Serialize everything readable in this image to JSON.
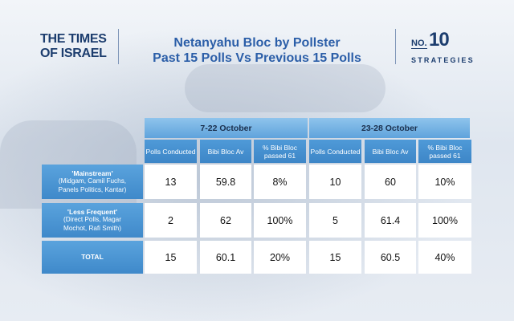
{
  "header": {
    "logo_line1": "THE TIMES",
    "logo_line2": "OF ISRAEL",
    "title_line1": "Netanyahu Bloc by Pollster",
    "title_line2": "Past 15 Polls Vs Previous 15 Polls",
    "brand_no": "NO.",
    "brand_number": "10",
    "brand_sub": "STRATEGIES"
  },
  "colors": {
    "navy": "#1c3d6e",
    "title_blue": "#2b5ea8",
    "header_blue": "#3d86c7",
    "group_blue": "#8fc4ec"
  },
  "chart_data": {
    "type": "table",
    "groups": [
      {
        "label": "7-22 October",
        "columns": [
          "Polls Conducted",
          "Bibi Bloc Av",
          "% Bibi Bloc passed 61"
        ]
      },
      {
        "label": "23-28 October",
        "columns": [
          "Polls Conducted",
          "Bibi Bloc Av",
          "% Bibi Bloc passed 61"
        ]
      }
    ],
    "rows": [
      {
        "title": "'Mainstream'",
        "detail": "(Midgam, Camil Fuchs, Panels Politics, Kantar)",
        "detail_lines": [
          "(Midgam, Camil Fuchs,",
          "Panels Politics, Kantar)"
        ],
        "values": [
          "13",
          "59.8",
          "8%",
          "10",
          "60",
          "10%"
        ]
      },
      {
        "title": "'Less Frequent'",
        "detail": "(Direct Polls, Magar Mochot, Rafi Smith)",
        "detail_lines": [
          "(Direct Polls, Magar",
          "Mochot, Rafi Smith)"
        ],
        "values": [
          "2",
          "62",
          "100%",
          "5",
          "61.4",
          "100%"
        ]
      },
      {
        "title": "TOTAL",
        "detail": "",
        "detail_lines": [],
        "values": [
          "15",
          "60.1",
          "20%",
          "15",
          "60.5",
          "40%"
        ]
      }
    ]
  }
}
